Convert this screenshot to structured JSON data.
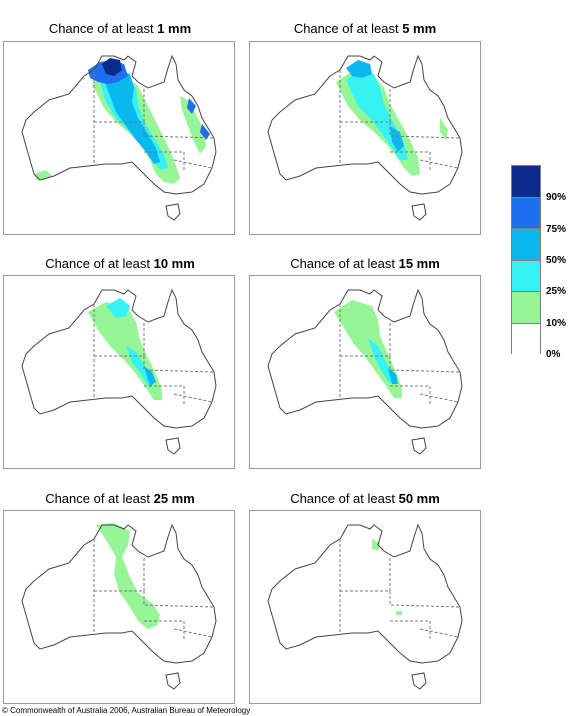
{
  "panels": [
    {
      "prefix": "Chance of at least ",
      "amount": "1 mm"
    },
    {
      "prefix": "Chance of at least ",
      "amount": "5 mm"
    },
    {
      "prefix": "Chance of at least ",
      "amount": "10 mm"
    },
    {
      "prefix": "Chance of at least ",
      "amount": "15 mm"
    },
    {
      "prefix": "Chance of at least ",
      "amount": "25 mm"
    },
    {
      "prefix": "Chance of at least ",
      "amount": "50 mm"
    }
  ],
  "legend": {
    "colors": [
      "#0a2a8c",
      "#1f6ef0",
      "#0bb8ee",
      "#35f3f3",
      "#96f596",
      "#ffffff"
    ],
    "labels": [
      "90%",
      "75%",
      "50%",
      "25%",
      "10%",
      "0%"
    ]
  },
  "colors": {
    "outline": "#444444",
    "border_dash": "#777777",
    "frame": "#9a9a9a"
  },
  "copyright": "© Commonwealth of Australia 2006, Australian Bureau of Meteorology"
}
